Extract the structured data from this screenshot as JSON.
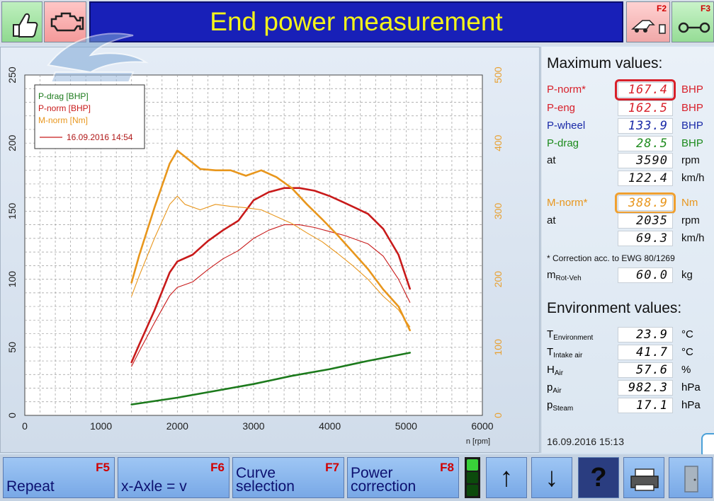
{
  "header": {
    "title": "End power measurement",
    "f2_key": "F2",
    "f3_key": "F3"
  },
  "chart_data": {
    "type": "line",
    "xlabel": "n [rpm]",
    "x_range": [
      0,
      6000
    ],
    "x_ticks": [
      "0",
      "1000",
      "2000",
      "3000",
      "4000",
      "5000",
      "6000"
    ],
    "y_left_range": [
      0,
      250
    ],
    "y_left_ticks": [
      "0",
      "50",
      "100",
      "150",
      "200",
      "250"
    ],
    "y_right_range": [
      0,
      500
    ],
    "y_right_ticks": [
      "0",
      "100",
      "200",
      "300",
      "400",
      "500"
    ],
    "grid": true,
    "legend": {
      "placement": "top-left",
      "entries": [
        "P-drag [BHP]",
        "P-norm [BHP]",
        "M-norm [Nm]"
      ],
      "run_label": "16.09.2016 14:54"
    },
    "colors": {
      "p_drag": "#1c7a1c",
      "p_norm": "#c81a1a",
      "m_norm": "#e8961c",
      "axis_right": "#e8a030"
    },
    "series": [
      {
        "name": "P-norm [BHP]",
        "axis": "left",
        "weight": "thick",
        "color": "#c81a1a",
        "x": [
          1400,
          1500,
          1700,
          1900,
          2000,
          2200,
          2400,
          2600,
          2800,
          3000,
          3200,
          3400,
          3600,
          3800,
          4000,
          4200,
          4500,
          4700,
          4900,
          5050
        ],
        "y": [
          39,
          52,
          77,
          105,
          113,
          118,
          128,
          136,
          143,
          158,
          164,
          167,
          167,
          165,
          161,
          156,
          148,
          137,
          118,
          93
        ]
      },
      {
        "name": "P-norm [BHP] thin",
        "axis": "left",
        "weight": "thin",
        "color": "#c81a1a",
        "x": [
          1400,
          1500,
          1700,
          1900,
          2000,
          2200,
          2400,
          2600,
          2800,
          3000,
          3200,
          3400,
          3600,
          3800,
          4000,
          4200,
          4500,
          4700,
          4900,
          5050
        ],
        "y": [
          36,
          47,
          68,
          88,
          94,
          98,
          107,
          115,
          121,
          130,
          136,
          140,
          140,
          138,
          135,
          132,
          126,
          117,
          100,
          83
        ]
      },
      {
        "name": "M-norm [Nm]",
        "axis": "right",
        "weight": "thick",
        "color": "#e8961c",
        "x": [
          1400,
          1500,
          1700,
          1900,
          2000,
          2100,
          2300,
          2500,
          2700,
          2900,
          3100,
          3300,
          3500,
          3700,
          3900,
          4100,
          4300,
          4500,
          4700,
          4900,
          5050
        ],
        "y": [
          195,
          235,
          305,
          370,
          389,
          380,
          362,
          360,
          360,
          352,
          360,
          350,
          334,
          310,
          288,
          265,
          240,
          215,
          185,
          160,
          125
        ]
      },
      {
        "name": "M-norm [Nm] thin",
        "axis": "right",
        "weight": "thin",
        "color": "#e8961c",
        "x": [
          1400,
          1500,
          1700,
          1900,
          2000,
          2100,
          2300,
          2500,
          2700,
          2900,
          3100,
          3300,
          3500,
          3700,
          3900,
          4100,
          4300,
          4500,
          4700,
          4900,
          5050
        ],
        "y": [
          175,
          205,
          260,
          310,
          322,
          310,
          302,
          310,
          307,
          305,
          302,
          292,
          282,
          268,
          255,
          238,
          220,
          200,
          175,
          155,
          130
        ]
      },
      {
        "name": "P-drag [BHP]",
        "axis": "left",
        "weight": "thick",
        "color": "#1c7a1c",
        "x": [
          1400,
          2000,
          2500,
          3000,
          3500,
          4000,
          4500,
          5050
        ],
        "y": [
          8,
          13,
          18,
          23,
          29,
          34,
          40,
          46
        ]
      }
    ]
  },
  "max_values": {
    "title": "Maximum values:",
    "rows": [
      {
        "label": "P-norm*",
        "value": "167.4",
        "unit": "BHP"
      },
      {
        "label": "P-eng",
        "value": "162.5",
        "unit": "BHP"
      },
      {
        "label": "P-wheel",
        "value": "133.9",
        "unit": "BHP"
      },
      {
        "label": "P-drag",
        "value": "28.5",
        "unit": "BHP"
      },
      {
        "label": "at",
        "value": "3590",
        "unit": "rpm"
      },
      {
        "label": "",
        "value": "122.4",
        "unit": "km/h"
      },
      {
        "label": "M-norm*",
        "value": "388.9",
        "unit": "Nm"
      },
      {
        "label": "at",
        "value": "2035",
        "unit": "rpm"
      },
      {
        "label": "",
        "value": "69.3",
        "unit": "km/h"
      }
    ],
    "correction_note": "* Correction acc. to EWG 80/1269",
    "mrot": {
      "label": "m",
      "sub": "Rot-Veh",
      "value": "60.0",
      "unit": "kg"
    }
  },
  "environment": {
    "title": "Environment values:",
    "rows": [
      {
        "label": "T",
        "sub": "Environment",
        "value": "23.9",
        "unit": "°C"
      },
      {
        "label": "T",
        "sub": "Intake air",
        "value": "41.7",
        "unit": "°C"
      },
      {
        "label": "H",
        "sub": "Air",
        "value": "57.6",
        "unit": "%"
      },
      {
        "label": "p",
        "sub": "Air",
        "value": "982.3",
        "unit": "hPa"
      },
      {
        "label": "p",
        "sub": "Steam",
        "value": "17.1",
        "unit": "hPa"
      }
    ]
  },
  "datetime": "16.09.2016   15:13",
  "footer": {
    "f5": {
      "label": "Repeat",
      "key": "F5"
    },
    "f6": {
      "label": "x-Axle = v",
      "key": "F6"
    },
    "f7": {
      "label1": "Curve",
      "label2": "selection",
      "key": "F7"
    },
    "f8": {
      "label1": "Power",
      "label2": "correction",
      "key": "F8"
    },
    "up_glyph": "↑",
    "down_glyph": "↓",
    "help_glyph": "?"
  },
  "icons": {
    "ok": "thumbs-up-icon",
    "engine": "engine-icon",
    "f2": "car-on-dyno-icon",
    "f3": "roller-icon",
    "print": "printer-icon",
    "exit": "door-icon"
  }
}
